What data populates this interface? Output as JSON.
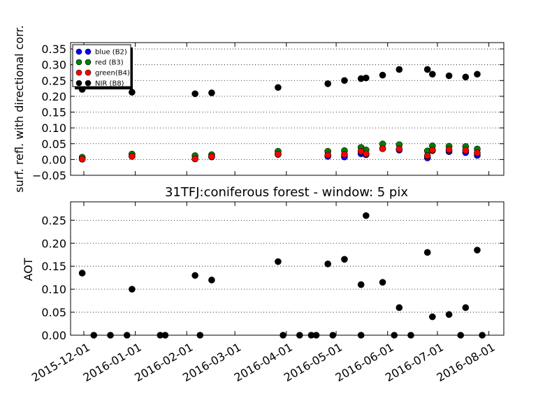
{
  "chart_data": [
    {
      "type": "scatter",
      "title": "",
      "xlabel": "",
      "ylabel": "surf. refl. with directional corr.",
      "ylim": [
        -0.05,
        0.37
      ],
      "xlim": [
        "2015-11-23",
        "2016-08-10"
      ],
      "yticks": [
        "−0.05",
        "0.00",
        "0.05",
        "0.10",
        "0.15",
        "0.20",
        "0.25",
        "0.30",
        "0.35"
      ],
      "ytick_values": [
        -0.05,
        0.0,
        0.05,
        0.1,
        0.15,
        0.2,
        0.25,
        0.3,
        0.35
      ],
      "grid": "horizontal dotted",
      "legend_position": "top-left",
      "x": [
        "2015-11-30",
        "2015-12-30",
        "2016-02-06",
        "2016-02-16",
        "2016-03-27",
        "2016-04-26",
        "2016-05-06",
        "2016-05-16",
        "2016-05-19",
        "2016-05-29",
        "2016-06-08",
        "2016-06-25",
        "2016-06-28",
        "2016-07-08",
        "2016-07-18",
        "2016-07-25"
      ],
      "series": [
        {
          "name": "blue (B2)",
          "color": "#0000ff",
          "values": [
            0.002,
            0.01,
            0.002,
            0.008,
            0.016,
            0.01,
            0.008,
            0.018,
            0.015,
            0.035,
            0.03,
            0.005,
            0.028,
            0.025,
            0.022,
            0.013
          ]
        },
        {
          "name": "red  (B3)",
          "color": "#008000",
          "values": [
            0.007,
            0.017,
            0.012,
            0.015,
            0.026,
            0.026,
            0.028,
            0.038,
            0.03,
            0.049,
            0.047,
            0.027,
            0.043,
            0.042,
            0.041,
            0.033
          ]
        },
        {
          "name": "green(B4)",
          "color": "#ff0000",
          "values": [
            0.001,
            0.01,
            0.002,
            0.009,
            0.017,
            0.014,
            0.016,
            0.026,
            0.018,
            0.034,
            0.033,
            0.012,
            0.03,
            0.031,
            0.029,
            0.021
          ]
        },
        {
          "name": "NIR  (B8)",
          "color": "#000000",
          "values": [
            0.222,
            0.213,
            0.208,
            0.211,
            0.228,
            0.24,
            0.25,
            0.256,
            0.258,
            0.267,
            0.285,
            0.285,
            0.27,
            0.265,
            0.261,
            0.27
          ]
        }
      ]
    },
    {
      "type": "scatter",
      "title": "31TFJ:coniferous forest - window: 5 pix",
      "xlabel": "",
      "ylabel": "AOT",
      "ylim": [
        0.0,
        0.29
      ],
      "xlim": [
        "2015-11-23",
        "2016-08-10"
      ],
      "yticks": [
        "0.00",
        "0.05",
        "0.10",
        "0.15",
        "0.20",
        "0.25"
      ],
      "ytick_values": [
        0.0,
        0.05,
        0.1,
        0.15,
        0.2,
        0.25
      ],
      "grid": "horizontal dotted",
      "xticks": [
        "2015-12-01",
        "2016-01-01",
        "2016-02-01",
        "2016-03-01",
        "2016-04-01",
        "2016-05-01",
        "2016-06-01",
        "2016-07-01",
        "2016-08-01"
      ],
      "series": [
        {
          "name": "",
          "color": "#000000",
          "x": [
            "2015-11-30",
            "2015-12-07",
            "2015-12-17",
            "2015-12-27",
            "2015-12-30",
            "2016-01-16",
            "2016-01-19",
            "2016-02-06",
            "2016-02-09",
            "2016-02-16",
            "2016-03-27",
            "2016-03-30",
            "2016-04-09",
            "2016-04-16",
            "2016-04-19",
            "2016-04-26",
            "2016-04-29",
            "2016-05-06",
            "2016-05-16",
            "2016-05-16",
            "2016-05-19",
            "2016-05-29",
            "2016-06-05",
            "2016-06-08",
            "2016-06-15",
            "2016-06-25",
            "2016-06-28",
            "2016-07-08",
            "2016-07-15",
            "2016-07-18",
            "2016-07-25",
            "2016-07-28"
          ],
          "values": [
            0.135,
            0.0,
            0.0,
            0.0,
            0.1,
            0.0,
            0.0,
            0.13,
            0.0,
            0.12,
            0.16,
            0.0,
            0.0,
            0.0,
            0.0,
            0.155,
            0.0,
            0.165,
            0.0,
            0.11,
            0.26,
            0.115,
            0.0,
            0.06,
            0.0,
            0.18,
            0.04,
            0.045,
            0.0,
            0.06,
            0.185,
            0.0
          ]
        }
      ]
    }
  ]
}
